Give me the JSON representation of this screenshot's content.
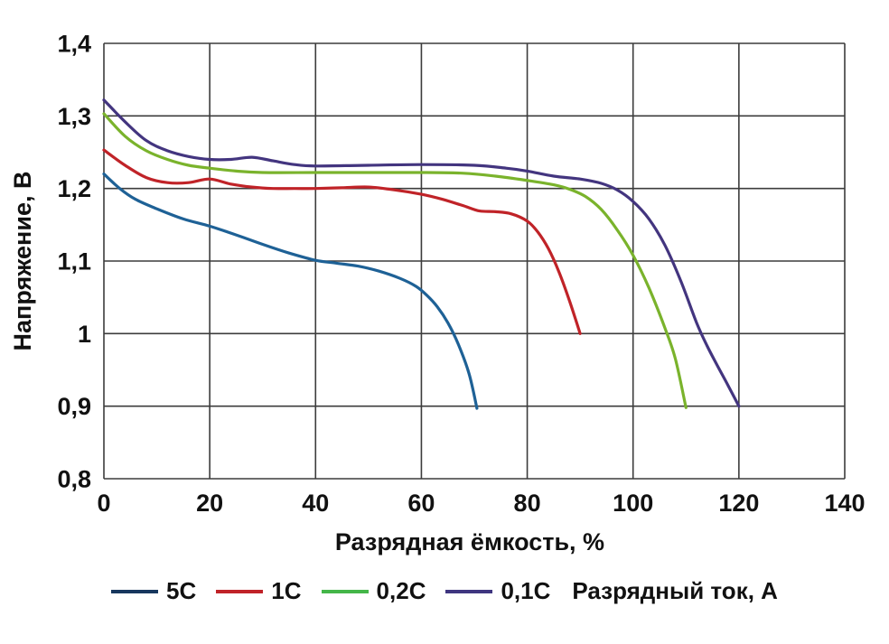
{
  "chart_data": {
    "type": "line",
    "title": "",
    "xlabel": "Разрядная ёмкость, %",
    "ylabel": "Напряжение, В",
    "legend_title": "Разрядный ток, А",
    "legend_position": "bottom",
    "grid": true,
    "grid_color": "#3c3c3c",
    "xlim": [
      0,
      140
    ],
    "ylim": [
      0.8,
      1.4
    ],
    "x_ticks": [
      {
        "v": 0,
        "label": "0"
      },
      {
        "v": 20,
        "label": "20"
      },
      {
        "v": 40,
        "label": "40"
      },
      {
        "v": 60,
        "label": "60"
      },
      {
        "v": 80,
        "label": "80"
      },
      {
        "v": 100,
        "label": "100"
      },
      {
        "v": 120,
        "label": "120"
      },
      {
        "v": 140,
        "label": "140"
      }
    ],
    "y_ticks": [
      {
        "v": 0.8,
        "label": "0,8"
      },
      {
        "v": 0.9,
        "label": "0,9"
      },
      {
        "v": 1.0,
        "label": "1"
      },
      {
        "v": 1.1,
        "label": "1,1"
      },
      {
        "v": 1.2,
        "label": "1,2"
      },
      {
        "v": 1.3,
        "label": "1,3"
      },
      {
        "v": 1.4,
        "label": "1,4"
      }
    ],
    "series": [
      {
        "name": "5C",
        "color": "#1e6196",
        "legend_color": "#17375e",
        "points": [
          [
            0,
            1.22
          ],
          [
            3,
            1.2
          ],
          [
            6,
            1.185
          ],
          [
            10,
            1.172
          ],
          [
            15,
            1.158
          ],
          [
            20,
            1.148
          ],
          [
            25,
            1.136
          ],
          [
            30,
            1.123
          ],
          [
            35,
            1.111
          ],
          [
            40,
            1.101
          ],
          [
            44,
            1.097
          ],
          [
            48,
            1.093
          ],
          [
            52,
            1.086
          ],
          [
            56,
            1.076
          ],
          [
            59,
            1.065
          ],
          [
            61,
            1.053
          ],
          [
            63,
            1.037
          ],
          [
            65,
            1.015
          ],
          [
            67,
            0.985
          ],
          [
            69,
            0.945
          ],
          [
            70.5,
            0.897
          ]
        ]
      },
      {
        "name": "1C",
        "color": "#c02328",
        "legend_color": "#c02328",
        "points": [
          [
            0,
            1.253
          ],
          [
            4,
            1.232
          ],
          [
            8,
            1.215
          ],
          [
            12,
            1.208
          ],
          [
            16,
            1.208
          ],
          [
            20,
            1.213
          ],
          [
            24,
            1.206
          ],
          [
            28,
            1.202
          ],
          [
            32,
            1.2
          ],
          [
            36,
            1.2
          ],
          [
            40,
            1.2
          ],
          [
            45,
            1.201
          ],
          [
            50,
            1.202
          ],
          [
            55,
            1.198
          ],
          [
            60,
            1.192
          ],
          [
            64,
            1.185
          ],
          [
            68,
            1.176
          ],
          [
            71,
            1.169
          ],
          [
            74,
            1.168
          ],
          [
            77,
            1.165
          ],
          [
            80,
            1.155
          ],
          [
            82,
            1.14
          ],
          [
            84,
            1.117
          ],
          [
            86,
            1.085
          ],
          [
            88,
            1.045
          ],
          [
            90,
            1.0
          ]
        ]
      },
      {
        "name": "0,2C",
        "color": "#7ab32c",
        "legend_color": "#44b649",
        "points": [
          [
            0,
            1.303
          ],
          [
            4,
            1.272
          ],
          [
            8,
            1.252
          ],
          [
            12,
            1.24
          ],
          [
            16,
            1.232
          ],
          [
            20,
            1.228
          ],
          [
            25,
            1.224
          ],
          [
            30,
            1.222
          ],
          [
            40,
            1.222
          ],
          [
            50,
            1.222
          ],
          [
            60,
            1.222
          ],
          [
            68,
            1.221
          ],
          [
            74,
            1.217
          ],
          [
            80,
            1.211
          ],
          [
            85,
            1.205
          ],
          [
            88,
            1.199
          ],
          [
            91,
            1.189
          ],
          [
            94,
            1.171
          ],
          [
            97,
            1.143
          ],
          [
            100,
            1.108
          ],
          [
            103,
            1.063
          ],
          [
            106,
            1.008
          ],
          [
            108,
            0.965
          ],
          [
            110,
            0.898
          ]
        ]
      },
      {
        "name": "0,1C",
        "color": "#43357f",
        "legend_color": "#3f3680",
        "points": [
          [
            0,
            1.322
          ],
          [
            4,
            1.292
          ],
          [
            8,
            1.266
          ],
          [
            12,
            1.252
          ],
          [
            16,
            1.244
          ],
          [
            20,
            1.24
          ],
          [
            24,
            1.24
          ],
          [
            28,
            1.243
          ],
          [
            32,
            1.238
          ],
          [
            36,
            1.233
          ],
          [
            40,
            1.231
          ],
          [
            50,
            1.232
          ],
          [
            60,
            1.233
          ],
          [
            70,
            1.232
          ],
          [
            76,
            1.228
          ],
          [
            80,
            1.224
          ],
          [
            85,
            1.217
          ],
          [
            90,
            1.213
          ],
          [
            94,
            1.207
          ],
          [
            97,
            1.198
          ],
          [
            100,
            1.182
          ],
          [
            103,
            1.158
          ],
          [
            106,
            1.122
          ],
          [
            109,
            1.073
          ],
          [
            112,
            1.015
          ],
          [
            114,
            0.983
          ],
          [
            116,
            0.955
          ],
          [
            118,
            0.928
          ],
          [
            120,
            0.9
          ]
        ]
      }
    ]
  }
}
